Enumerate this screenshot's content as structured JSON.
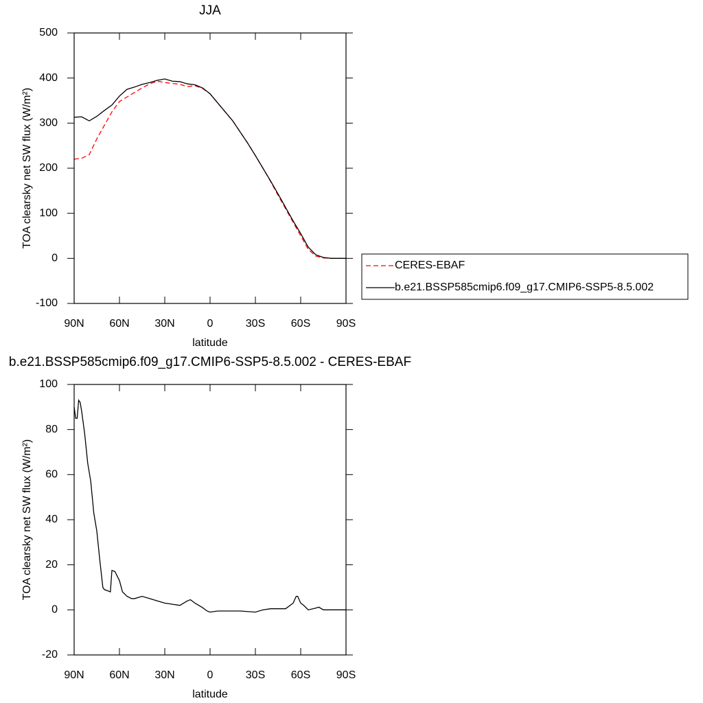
{
  "chart_data": [
    {
      "type": "line",
      "title": "JJA",
      "xlabel": "latitude",
      "ylabel": "TOA clearsky net SW flux (W/m²)",
      "x": [
        90,
        85,
        80,
        75,
        70,
        65,
        60,
        55,
        50,
        45,
        40,
        35,
        30,
        25,
        20,
        15,
        10,
        5,
        0,
        -5,
        -10,
        -15,
        -20,
        -25,
        -30,
        -35,
        -40,
        -45,
        -50,
        -55,
        -60,
        -65,
        -70,
        -75,
        -80,
        -85,
        -90
      ],
      "series": [
        {
          "name": "CERES-EBAF",
          "color": "#ff0000",
          "line_style": "dashed",
          "values": [
            220,
            222,
            230,
            265,
            295,
            325,
            348,
            358,
            368,
            378,
            387,
            393,
            390,
            388,
            386,
            381,
            383,
            377,
            365,
            345,
            325,
            305,
            280,
            255,
            228,
            200,
            171,
            140,
            110,
            80,
            50,
            20,
            5,
            1,
            0,
            0,
            0
          ]
        },
        {
          "name": "b.e21.BSSP585cmip6.f09_g17.CMIP6-SSP5-8.5.002",
          "color": "#000000",
          "line_style": "solid",
          "values": [
            313,
            314,
            305,
            315,
            328,
            340,
            360,
            375,
            380,
            386,
            390,
            395,
            398,
            393,
            392,
            387,
            385,
            378,
            365,
            345,
            325,
            305,
            280,
            255,
            228,
            200,
            172,
            143,
            113,
            83,
            55,
            25,
            8,
            2,
            0,
            0,
            0
          ]
        }
      ],
      "xlim": [
        90,
        -90
      ],
      "xticks": [
        {
          "value": 90,
          "label": "90N"
        },
        {
          "value": 60,
          "label": "60N"
        },
        {
          "value": 30,
          "label": "30N"
        },
        0,
        {
          "value": -30,
          "label": "30S"
        },
        {
          "value": -60,
          "label": "60S"
        },
        {
          "value": -90,
          "label": "90S"
        }
      ],
      "ylim": [
        -100,
        500
      ],
      "yticks": [
        -100,
        0,
        100,
        200,
        300,
        400,
        500
      ],
      "legend": "right"
    },
    {
      "type": "line",
      "title": "b.e21.BSSP585cmip6.f09_g17.CMIP6-SSP5-8.5.002 - CERES-EBAF",
      "xlabel": "latitude",
      "ylabel": "TOA clearsky net SW flux (W/m²)",
      "x": [
        90,
        89,
        88,
        87,
        86,
        85,
        83,
        81,
        79,
        77,
        75,
        73,
        71,
        70,
        68,
        66,
        65,
        63,
        60,
        58,
        55,
        52,
        50,
        45,
        40,
        35,
        30,
        25,
        20,
        15,
        13,
        10,
        5,
        2,
        0,
        -5,
        -10,
        -20,
        -30,
        -35,
        -40,
        -45,
        -50,
        -55,
        -57,
        -58,
        -60,
        -62,
        -65,
        -70,
        -72,
        -75,
        -80,
        -90
      ],
      "series": [
        {
          "color": "#000000",
          "line_style": "solid",
          "values": [
            90,
            85,
            85,
            93,
            92,
            88,
            78,
            65,
            57,
            43,
            35,
            22,
            10,
            9,
            8.5,
            8,
            17.5,
            17,
            13,
            8,
            6,
            5,
            5,
            6,
            5,
            4,
            3,
            2.5,
            2,
            4,
            4.5,
            3,
            1,
            -0.5,
            -1,
            -0.5,
            -0.5,
            -0.5,
            -1,
            0,
            0.5,
            0.5,
            0.5,
            3,
            6,
            6,
            3,
            2,
            0,
            0.8,
            1.2,
            0,
            0,
            0
          ]
        }
      ],
      "xlim": [
        90,
        -90
      ],
      "xticks": [
        {
          "value": 90,
          "label": "90N"
        },
        {
          "value": 60,
          "label": "60N"
        },
        {
          "value": 30,
          "label": "30N"
        },
        0,
        {
          "value": -30,
          "label": "30S"
        },
        {
          "value": -60,
          "label": "60S"
        },
        {
          "value": -90,
          "label": "90S"
        }
      ],
      "ylim": [
        -20,
        100
      ],
      "yticks": [
        -20,
        0,
        20,
        40,
        60,
        80,
        100
      ]
    }
  ]
}
